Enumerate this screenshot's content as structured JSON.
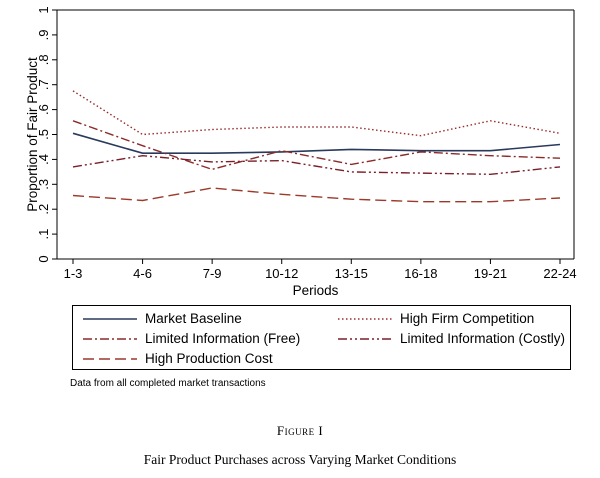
{
  "chart_data": {
    "type": "line",
    "xlabel": "Periods",
    "ylabel": "Proportion of Fair Product",
    "categories": [
      "1-3",
      "4-6",
      "7-9",
      "10-12",
      "13-15",
      "16-18",
      "19-21",
      "22-24"
    ],
    "ylim": [
      0,
      1
    ],
    "yticks": [
      "0",
      ".1",
      ".2",
      ".3",
      ".4",
      ".5",
      ".6",
      ".7",
      ".8",
      ".9",
      "1"
    ],
    "legend_position": "bottom",
    "series": [
      {
        "name": "Market Baseline",
        "color": "#2a3a5c",
        "style": "solid",
        "values": [
          0.505,
          0.425,
          0.425,
          0.43,
          0.44,
          0.435,
          0.435,
          0.46
        ]
      },
      {
        "name": "High Firm Competition",
        "color": "#9b2a2a",
        "style": "dotted",
        "values": [
          0.675,
          0.5,
          0.52,
          0.53,
          0.53,
          0.495,
          0.555,
          0.505
        ]
      },
      {
        "name": "Limited Information (Free)",
        "color": "#8b2a2a",
        "style": "dashdot",
        "values": [
          0.555,
          0.455,
          0.36,
          0.435,
          0.38,
          0.43,
          0.415,
          0.405
        ]
      },
      {
        "name": "Limited Information (Costly)",
        "color": "#7a1f2a",
        "style": "dashdotdot",
        "values": [
          0.37,
          0.415,
          0.39,
          0.395,
          0.35,
          0.345,
          0.34,
          0.37
        ]
      },
      {
        "name": "High Production Cost",
        "color": "#9b3a2a",
        "style": "longdash",
        "values": [
          0.255,
          0.235,
          0.285,
          0.26,
          0.24,
          0.23,
          0.23,
          0.245
        ]
      }
    ]
  },
  "note": "Data from all completed market transactions",
  "figure_label": "Figure I",
  "caption": "Fair Product Purchases across Varying Market Conditions"
}
